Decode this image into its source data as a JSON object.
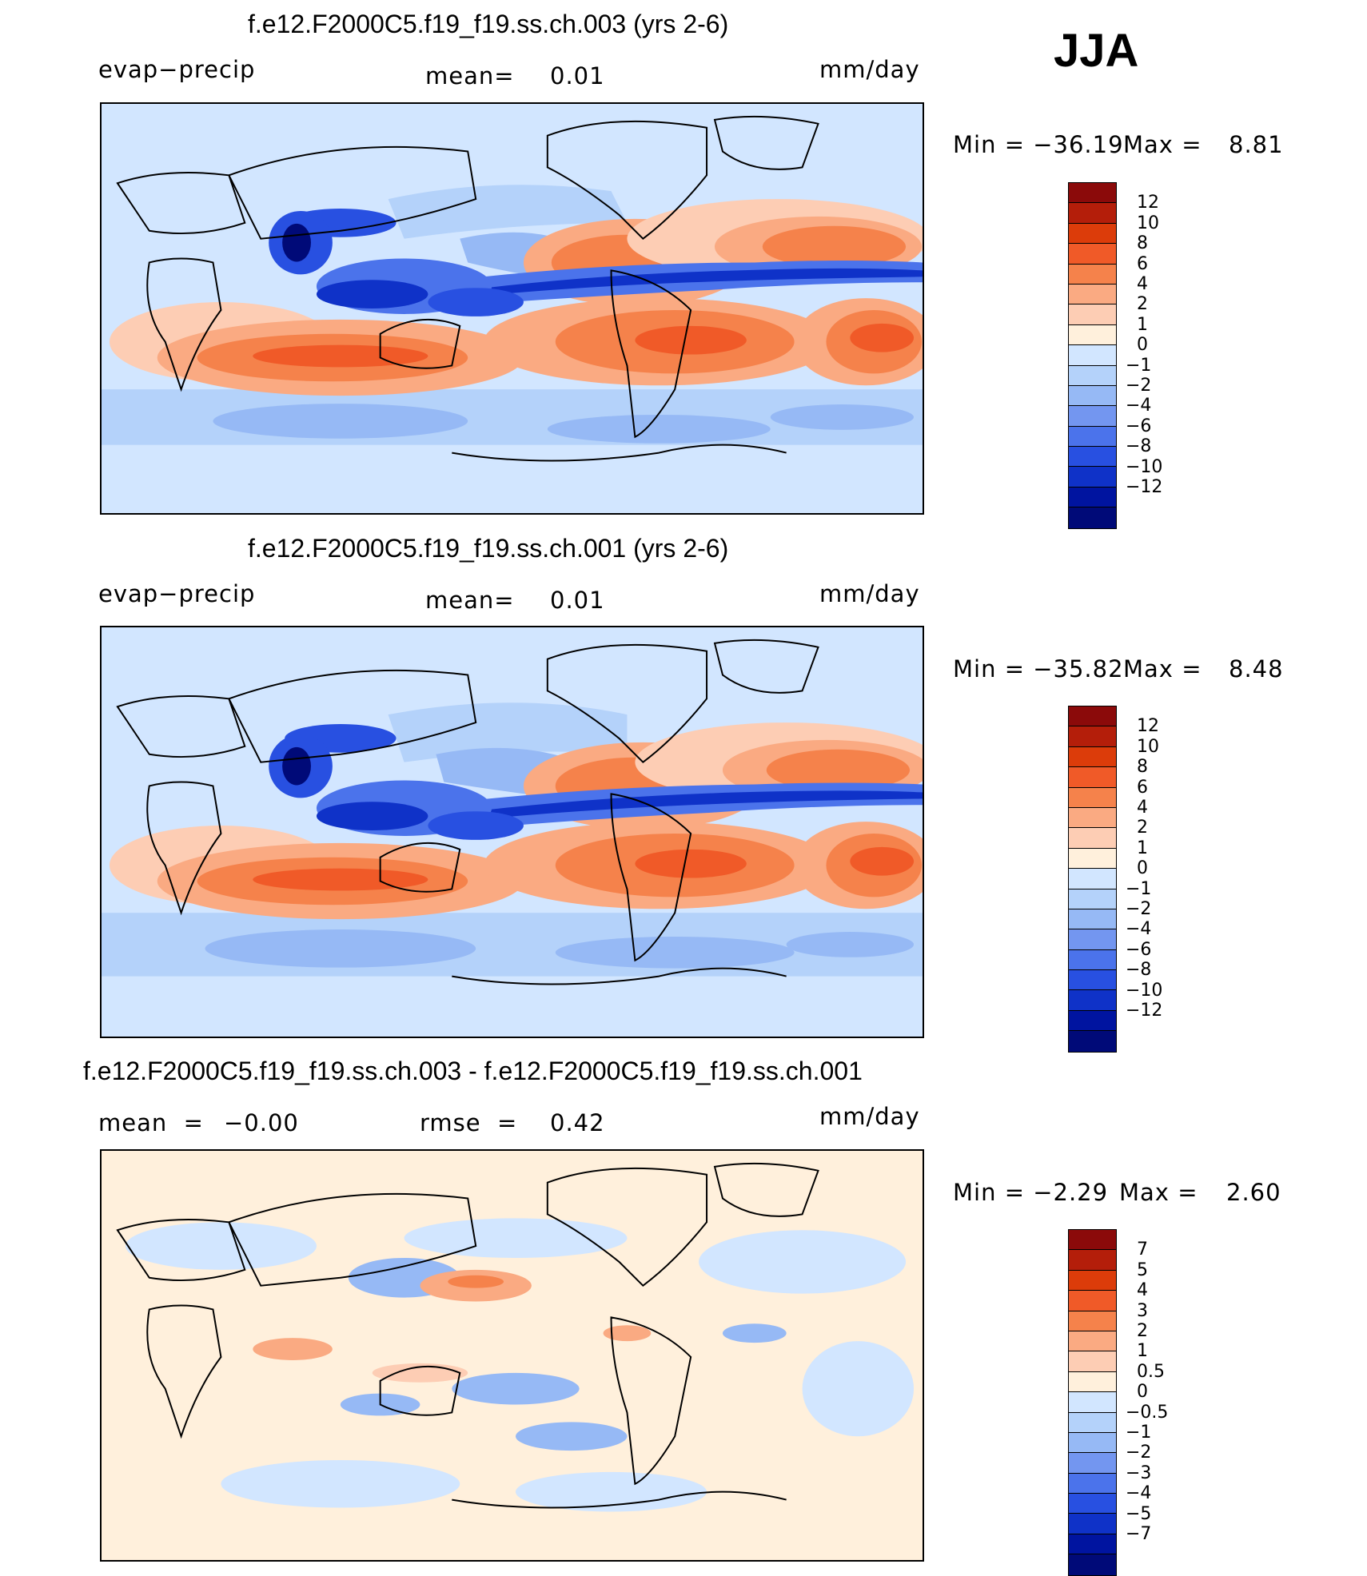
{
  "season": "JJA",
  "panels": [
    {
      "title": "f.e12.F2000C5.f19_f19.ss.ch.003 (yrs 2-6)",
      "left_label": "evap−precip",
      "center_label": "mean=",
      "center_value": "0.01",
      "units": "mm/day",
      "min_max": {
        "min_label": "Min",
        "eq": "=",
        "min": "−36.19",
        "max_label": "Max",
        "max": "8.81"
      },
      "colorbar": {
        "colors": [
          "#8b0a0a",
          "#b41e0a",
          "#dc3c0a",
          "#f05a28",
          "#f5824b",
          "#faaa82",
          "#fdcdb4",
          "#fff0dc",
          "#d2e6ff",
          "#b4d2fa",
          "#96b9f5",
          "#7396f0",
          "#4b73eb",
          "#2850e1",
          "#0f32c8",
          "#0014a0",
          "#000a78"
        ],
        "labels": [
          "12",
          "10",
          "8",
          "6",
          "4",
          "2",
          "1",
          "0",
          "−1",
          "−2",
          "−4",
          "−6",
          "−8",
          "−10",
          "−12"
        ]
      }
    },
    {
      "title": "f.e12.F2000C5.f19_f19.ss.ch.001 (yrs 2-6)",
      "left_label": "evap−precip",
      "center_label": "mean=",
      "center_value": "0.01",
      "units": "mm/day",
      "min_max": {
        "min_label": "Min",
        "eq": "=",
        "min": "−35.82",
        "max_label": "Max",
        "max": "8.48"
      },
      "colorbar": {
        "colors": [
          "#8b0a0a",
          "#b41e0a",
          "#dc3c0a",
          "#f05a28",
          "#f5824b",
          "#faaa82",
          "#fdcdb4",
          "#fff0dc",
          "#d2e6ff",
          "#b4d2fa",
          "#96b9f5",
          "#7396f0",
          "#4b73eb",
          "#2850e1",
          "#0f32c8",
          "#0014a0",
          "#000a78"
        ],
        "labels": [
          "12",
          "10",
          "8",
          "6",
          "4",
          "2",
          "1",
          "0",
          "−1",
          "−2",
          "−4",
          "−6",
          "−8",
          "−10",
          "−12"
        ]
      }
    },
    {
      "title": "f.e12.F2000C5.f19_f19.ss.ch.003 - f.e12.F2000C5.f19_f19.ss.ch.001",
      "left_label": "mean  =",
      "left_value": "−0.00",
      "center_label": "rmse  =",
      "center_value": "0.42",
      "units": "mm/day",
      "min_max": {
        "min_label": "Min",
        "eq": "=",
        "min": "−2.29",
        "max_label": "Max",
        "max": "2.60"
      },
      "colorbar": {
        "colors": [
          "#8b0a0a",
          "#b41e0a",
          "#dc3c0a",
          "#f05a28",
          "#f5824b",
          "#faaa82",
          "#fdcdb4",
          "#fff0dc",
          "#d2e6ff",
          "#b4d2fa",
          "#96b9f5",
          "#7396f0",
          "#4b73eb",
          "#2850e1",
          "#0f32c8",
          "#0014a0",
          "#000a78"
        ],
        "labels": [
          "7",
          "5",
          "4",
          "3",
          "2",
          "1",
          "0.5",
          "0",
          "−0.5",
          "−1",
          "−2",
          "−3",
          "−4",
          "−5",
          "−7"
        ]
      }
    }
  ]
}
